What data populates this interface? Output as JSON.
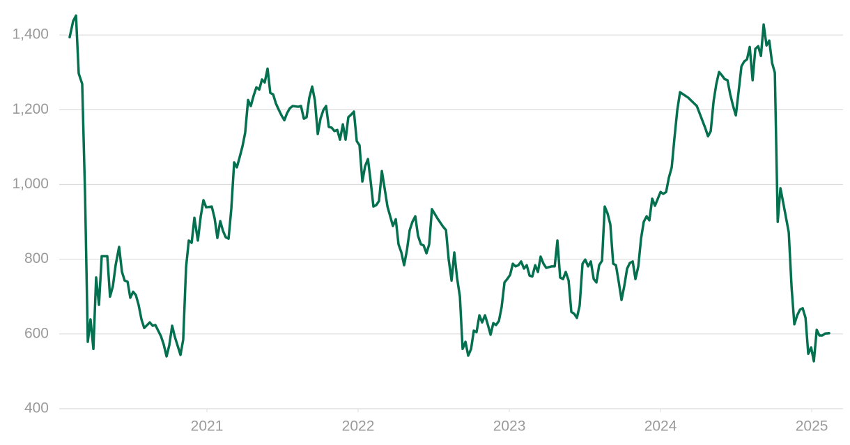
{
  "chart_data": {
    "type": "line",
    "x": [
      2020.092,
      2020.115,
      2020.134,
      2020.152,
      2020.175,
      2020.194,
      2020.212,
      2020.23,
      2020.249,
      2020.267,
      2020.286,
      2020.304,
      2020.341,
      2020.359,
      2020.378,
      2020.396,
      2020.419,
      2020.438,
      2020.456,
      2020.475,
      2020.493,
      2020.512,
      2020.53,
      2020.548,
      2020.567,
      2020.585,
      2020.622,
      2020.641,
      2020.659,
      2020.696,
      2020.714,
      2020.733,
      2020.751,
      2020.77,
      2020.788,
      2020.825,
      2020.843,
      2020.862,
      2020.88,
      2020.899,
      2020.917,
      2020.94,
      2020.959,
      2020.977,
      2020.995,
      2021.032,
      2021.051,
      2021.069,
      2021.088,
      2021.106,
      2021.124,
      2021.143,
      2021.161,
      2021.18,
      2021.198,
      2021.217,
      2021.235,
      2021.253,
      2021.272,
      2021.29,
      2021.309,
      2021.327,
      2021.346,
      2021.364,
      2021.382,
      2021.401,
      2021.419,
      2021.438,
      2021.456,
      2021.475,
      2021.493,
      2021.512,
      2021.53,
      2021.548,
      2021.567,
      2021.604,
      2021.622,
      2021.641,
      2021.659,
      2021.677,
      2021.696,
      2021.714,
      2021.733,
      2021.751,
      2021.77,
      2021.788,
      2021.806,
      2021.825,
      2021.843,
      2021.862,
      2021.88,
      2021.899,
      2021.917,
      2021.935,
      2021.954,
      2021.972,
      2021.991,
      2022.009,
      2022.028,
      2022.046,
      2022.065,
      2022.083,
      2022.101,
      2022.12,
      2022.138,
      2022.157,
      2022.175,
      2022.194,
      2022.212,
      2022.23,
      2022.249,
      2022.267,
      2022.286,
      2022.304,
      2022.323,
      2022.341,
      2022.359,
      2022.378,
      2022.396,
      2022.415,
      2022.433,
      2022.452,
      2022.47,
      2022.488,
      2022.525,
      2022.562,
      2022.581,
      2022.599,
      2022.618,
      2022.636,
      2022.654,
      2022.673,
      2022.691,
      2022.71,
      2022.728,
      2022.747,
      2022.765,
      2022.783,
      2022.802,
      2022.82,
      2022.839,
      2022.857,
      2022.876,
      2022.894,
      2022.912,
      2022.931,
      2022.949,
      2022.968,
      2022.986,
      2023.005,
      2023.023,
      2023.041,
      2023.06,
      2023.078,
      2023.097,
      2023.115,
      2023.134,
      2023.152,
      2023.171,
      2023.189,
      2023.207,
      2023.226,
      2023.244,
      2023.281,
      2023.3,
      2023.318,
      2023.336,
      2023.355,
      2023.373,
      2023.392,
      2023.41,
      2023.429,
      2023.447,
      2023.465,
      2023.484,
      2023.502,
      2023.521,
      2023.539,
      2023.558,
      2023.576,
      2023.594,
      2023.613,
      2023.631,
      2023.65,
      2023.668,
      2023.687,
      2023.705,
      2023.724,
      2023.742,
      2023.76,
      2023.779,
      2023.797,
      2023.816,
      2023.834,
      2023.853,
      2023.871,
      2023.889,
      2023.908,
      2023.926,
      2023.945,
      2023.963,
      2023.982,
      2024.0,
      2024.018,
      2024.037,
      2024.055,
      2024.074,
      2024.092,
      2024.111,
      2024.129,
      2024.184,
      2024.24,
      2024.295,
      2024.314,
      2024.332,
      2024.351,
      2024.369,
      2024.387,
      2024.406,
      2024.424,
      2024.443,
      2024.461,
      2024.48,
      2024.498,
      2024.517,
      2024.535,
      2024.553,
      2024.572,
      2024.59,
      2024.609,
      2024.627,
      2024.646,
      2024.664,
      2024.682,
      2024.701,
      2024.719,
      2024.738,
      2024.756,
      2024.775,
      2024.793,
      2024.811,
      2024.83,
      2024.848,
      2024.867,
      2024.885,
      2024.904,
      2024.922,
      2024.94,
      2024.959,
      2024.977,
      2024.996,
      2025.014,
      2025.033,
      2025.051,
      2025.07,
      2025.088,
      2025.115
    ],
    "series": [
      {
        "color": "#04704f",
        "values": [
          1394,
          1437,
          1452,
          1297,
          1269,
          971,
          579,
          639,
          560,
          751,
          678,
          808,
          808,
          700,
          728,
          784,
          833,
          766,
          743,
          740,
          697,
          713,
          704,
          678,
          639,
          616,
          631,
          622,
          624,
          594,
          572,
          540,
          570,
          622,
          592,
          544,
          585,
          779,
          850,
          844,
          911,
          850,
          915,
          958,
          939,
          941,
          909,
          857,
          902,
          876,
          859,
          855,
          934,
          1059,
          1046,
          1074,
          1102,
          1139,
          1226,
          1210,
          1238,
          1260,
          1254,
          1281,
          1273,
          1310,
          1245,
          1241,
          1217,
          1200,
          1185,
          1172,
          1191,
          1204,
          1210,
          1208,
          1210,
          1176,
          1180,
          1232,
          1262,
          1225,
          1135,
          1176,
          1199,
          1210,
          1154,
          1152,
          1143,
          1146,
          1120,
          1161,
          1120,
          1180,
          1187,
          1195,
          1116,
          1105,
          1008,
          1049,
          1068,
          1008,
          941,
          945,
          956,
          1036,
          990,
          941,
          915,
          889,
          907,
          840,
          818,
          784,
          825,
          878,
          900,
          915,
          863,
          840,
          837,
          816,
          840,
          934,
          909,
          887,
          878,
          799,
          743,
          818,
          751,
          700,
          560,
          579,
          542,
          560,
          609,
          605,
          650,
          631,
          650,
          626,
          598,
          629,
          624,
          635,
          672,
          738,
          747,
          758,
          788,
          781,
          784,
          794,
          775,
          784,
          756,
          754,
          784,
          766,
          807,
          788,
          777,
          781,
          781,
          850,
          751,
          747,
          766,
          743,
          659,
          654,
          643,
          676,
          788,
          799,
          781,
          794,
          747,
          738,
          784,
          796,
          941,
          922,
          893,
          788,
          784,
          738,
          691,
          728,
          775,
          790,
          794,
          747,
          781,
          855,
          900,
          915,
          904,
          962,
          943,
          962,
          980,
          975,
          980,
          1018,
          1046,
          1124,
          1200,
          1247,
          1232,
          1210,
          1152,
          1129,
          1143,
          1223,
          1269,
          1301,
          1292,
          1282,
          1279,
          1241,
          1210,
          1185,
          1251,
          1316,
          1329,
          1335,
          1368,
          1279,
          1363,
          1370,
          1344,
          1428,
          1372,
          1385,
          1325,
          1299,
          900,
          990,
          952,
          911,
          872,
          723,
          626,
          650,
          665,
          669,
          643,
          547,
          564,
          527,
          611,
          596,
          596,
          601,
          602
        ]
      }
    ],
    "xlim": [
      2020.023,
      2025.207
    ],
    "ylim": [
      400,
      1475
    ],
    "xticks": [
      2021,
      2022,
      2023,
      2024,
      2025
    ],
    "yticks": [
      {
        "value": 1400,
        "label": "1,400"
      },
      {
        "value": 1200,
        "label": "1,200"
      },
      {
        "value": 1000,
        "label": "1,000"
      },
      800,
      600,
      400
    ],
    "grid": true
  }
}
